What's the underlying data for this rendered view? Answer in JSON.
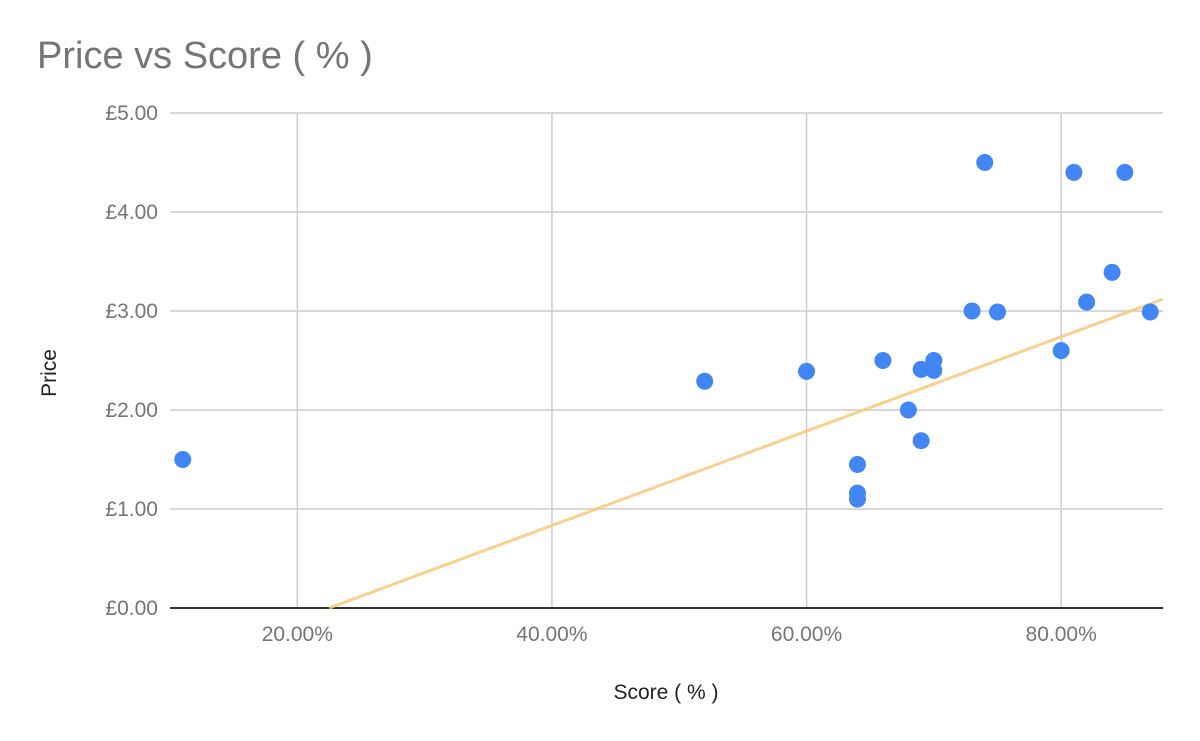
{
  "chart_data": {
    "type": "scatter",
    "title": "Price vs Score ( % )",
    "xlabel": "Score ( % )",
    "ylabel": "Price",
    "xlim": [
      0.1,
      0.88
    ],
    "ylim": [
      0,
      5
    ],
    "x_ticks": [
      {
        "value": 0.2,
        "label": "20.00%"
      },
      {
        "value": 0.4,
        "label": "40.00%"
      },
      {
        "value": 0.6,
        "label": "60.00%"
      },
      {
        "value": 0.8,
        "label": "80.00%"
      }
    ],
    "y_ticks": [
      {
        "value": 0,
        "label": "£0.00"
      },
      {
        "value": 1,
        "label": "£1.00"
      },
      {
        "value": 2,
        "label": "£2.00"
      },
      {
        "value": 3,
        "label": "£3.00"
      },
      {
        "value": 4,
        "label": "£4.00"
      },
      {
        "value": 5,
        "label": "£5.00"
      }
    ],
    "grid": true,
    "colors": {
      "points": "#4285f4",
      "trendline": "#f9c87a"
    },
    "points": [
      {
        "x": 0.11,
        "y": 1.5
      },
      {
        "x": 0.52,
        "y": 2.29
      },
      {
        "x": 0.6,
        "y": 2.39
      },
      {
        "x": 0.64,
        "y": 1.45
      },
      {
        "x": 0.64,
        "y": 1.16
      },
      {
        "x": 0.64,
        "y": 1.1
      },
      {
        "x": 0.66,
        "y": 2.5
      },
      {
        "x": 0.68,
        "y": 2.0
      },
      {
        "x": 0.69,
        "y": 2.41
      },
      {
        "x": 0.69,
        "y": 1.69
      },
      {
        "x": 0.7,
        "y": 2.5
      },
      {
        "x": 0.7,
        "y": 2.4
      },
      {
        "x": 0.73,
        "y": 3.0
      },
      {
        "x": 0.74,
        "y": 4.5
      },
      {
        "x": 0.75,
        "y": 2.99
      },
      {
        "x": 0.8,
        "y": 2.6
      },
      {
        "x": 0.81,
        "y": 4.4
      },
      {
        "x": 0.82,
        "y": 3.09
      },
      {
        "x": 0.84,
        "y": 3.39
      },
      {
        "x": 0.85,
        "y": 4.4
      },
      {
        "x": 0.87,
        "y": 2.99
      }
    ],
    "trendline": {
      "x1": 0.225,
      "y1": 0.0,
      "x2": 0.88,
      "y2": 3.12
    }
  }
}
